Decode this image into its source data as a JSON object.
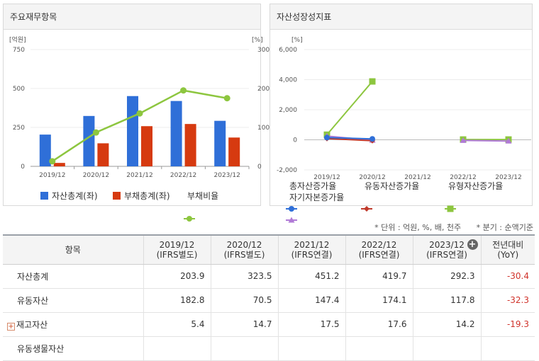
{
  "left_panel": {
    "title": "주요재무항목",
    "left_unit": "[억원]",
    "right_unit": "[%]",
    "left_ticks": [
      "750",
      "500",
      "250",
      "0"
    ],
    "right_ticks": [
      "300",
      "200",
      "100",
      "0"
    ],
    "legend": [
      "자산총계(좌)",
      "부채총계(좌)",
      "부채비율"
    ]
  },
  "right_panel": {
    "title": "자산성장성지표",
    "unit": "[%]",
    "ticks": [
      "6,000",
      "4,000",
      "2,000",
      "0",
      "-2,000"
    ],
    "legend": [
      "총자산증가율",
      "유동자산증가율",
      "유형자산증가율",
      "자기자본증가율"
    ]
  },
  "chart_data": [
    {
      "type": "bar",
      "title": "주요재무항목",
      "categories": [
        "2019/12",
        "2020/12",
        "2021/12",
        "2022/12",
        "2023/12"
      ],
      "ylim": [
        0,
        750
      ],
      "y2lim": [
        0,
        300
      ],
      "series": [
        {
          "name": "자산총계(좌)",
          "type": "bar",
          "axis": "left",
          "color": "#2f6fd8",
          "values": [
            203.9,
            323.5,
            451.2,
            419.7,
            292.3
          ]
        },
        {
          "name": "부채총계(좌)",
          "type": "bar",
          "axis": "left",
          "color": "#d63a10",
          "values": [
            22,
            148,
            258,
            272,
            185
          ]
        },
        {
          "name": "부채비율",
          "type": "line",
          "axis": "right",
          "color": "#8dc63f",
          "values": [
            13,
            87,
            136,
            195,
            175
          ]
        }
      ],
      "legend_position": "bottom"
    },
    {
      "type": "line",
      "title": "자산성장성지표",
      "categories": [
        "2019/12",
        "2020/12",
        "2021/12",
        "2022/12",
        "2023/12"
      ],
      "ylim": [
        -2000,
        6000
      ],
      "series": [
        {
          "name": "총자산증가율",
          "color": "#2f6fd8",
          "marker": "circle",
          "values": [
            150,
            60,
            null,
            null,
            null
          ]
        },
        {
          "name": "유동자산증가율",
          "color": "#c0392b",
          "marker": "diamond",
          "values": [
            80,
            -60,
            null,
            null,
            null
          ]
        },
        {
          "name": "유형자산증가율",
          "color": "#8dc63f",
          "marker": "square",
          "values": [
            340,
            3880,
            null,
            20,
            20
          ]
        },
        {
          "name": "자기자본증가율",
          "color": "#b07ad6",
          "marker": "triangle",
          "values": [
            250,
            -30,
            null,
            -40,
            -80
          ]
        }
      ],
      "legend_position": "bottom"
    }
  ],
  "notes": {
    "unit": "* 단위 : 억원, %, 배, 천주",
    "period": "* 분기 : 순액기준"
  },
  "table": {
    "header_item": "항목",
    "columns": [
      {
        "year": "2019/12",
        "basis": "(IFRS별도)"
      },
      {
        "year": "2020/12",
        "basis": "(IFRS별도)"
      },
      {
        "year": "2021/12",
        "basis": "(IFRS연결)"
      },
      {
        "year": "2022/12",
        "basis": "(IFRS연결)"
      },
      {
        "year": "2023/12",
        "basis": "(IFRS연결)"
      }
    ],
    "yoy": {
      "label": "전년대비",
      "sub": "(YoY)"
    },
    "rows": [
      {
        "label": "자산총계",
        "values": [
          "203.9",
          "323.5",
          "451.2",
          "419.7",
          "292.3"
        ],
        "yoy": "-30.4"
      },
      {
        "label": "유동자산",
        "values": [
          "182.8",
          "70.5",
          "147.4",
          "174.1",
          "117.8"
        ],
        "yoy": "-32.3"
      },
      {
        "label": "재고자산",
        "values": [
          "5.4",
          "14.7",
          "17.5",
          "17.6",
          "14.2"
        ],
        "yoy": "-19.3",
        "expand": "+"
      },
      {
        "label": "유동생물자산",
        "values": [
          "",
          "",
          "",
          "",
          ""
        ],
        "yoy": ""
      }
    ]
  }
}
